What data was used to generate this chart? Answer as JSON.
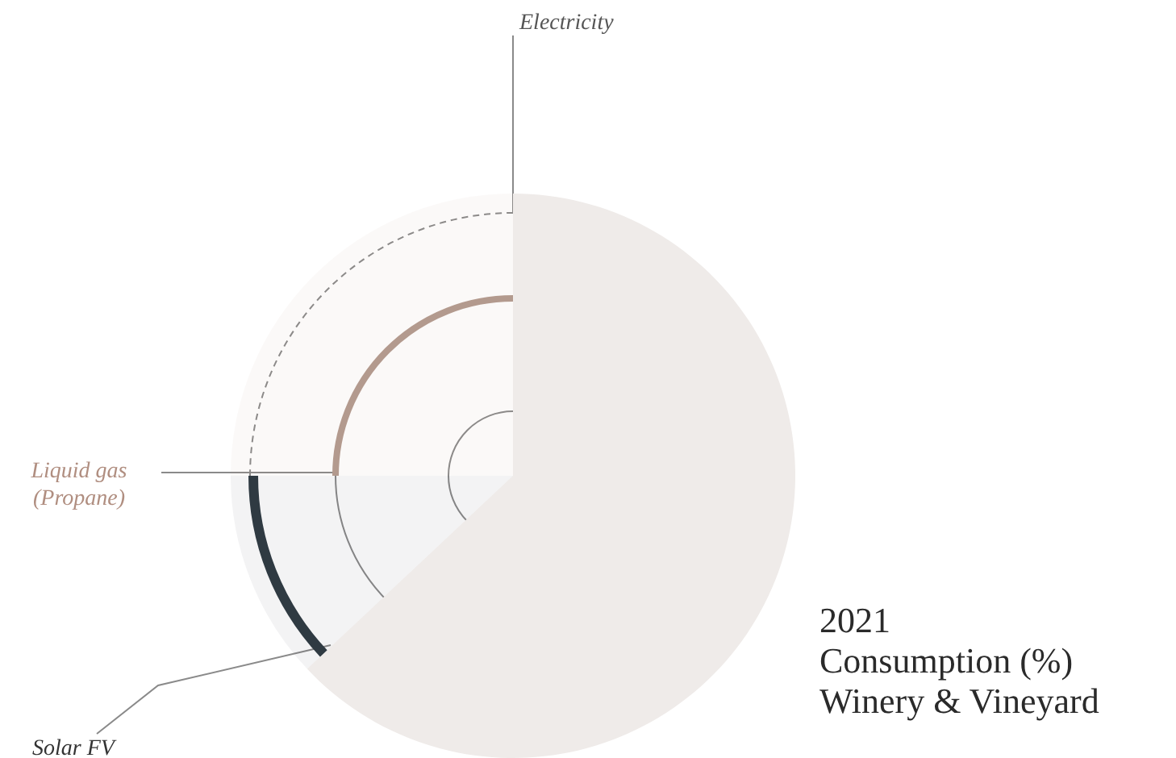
{
  "chart_data": {
    "type": "pie",
    "title": "2021",
    "subtitle": "Consumption (%) Winery & Vineyard",
    "categories": [
      "Electricity",
      "Solar FV",
      "Liquid gas (Propane)"
    ],
    "values": [
      63,
      12,
      25
    ],
    "colors": [
      "#efebe9",
      "#2f3a42",
      "#b39a8e"
    ],
    "legend": false
  }
}
